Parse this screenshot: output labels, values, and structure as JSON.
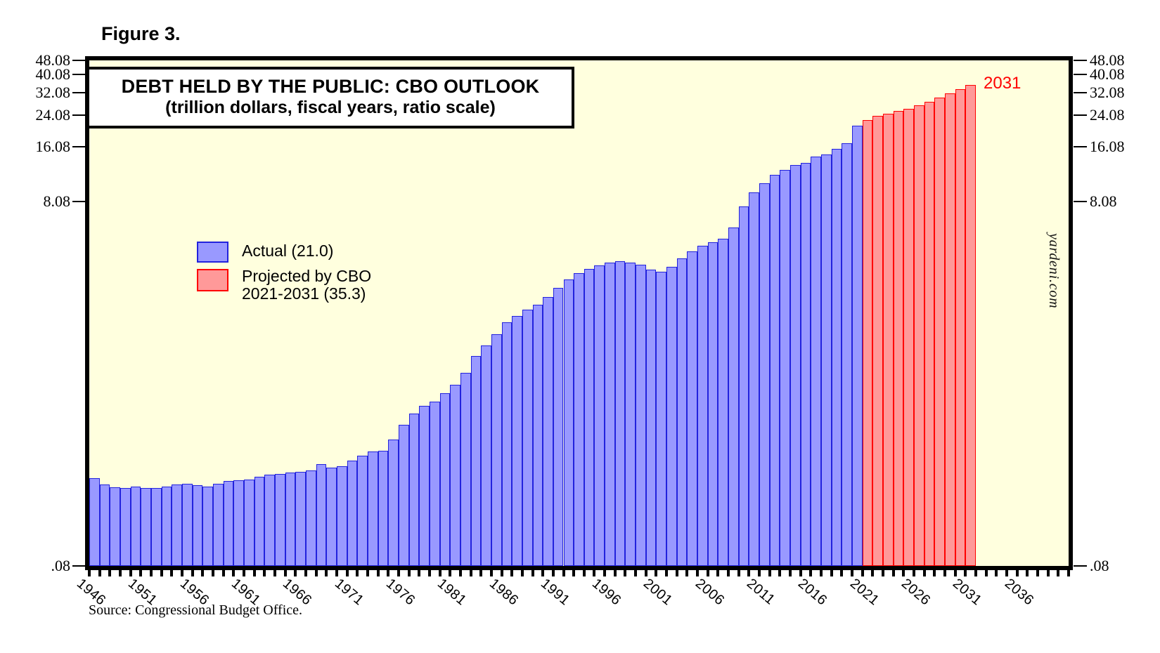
{
  "figure_label": "Figure 3.",
  "title": {
    "line1": "DEBT HELD BY THE PUBLIC: CBO OUTLOOK",
    "line2": "(trillion dollars, fiscal years, ratio scale)"
  },
  "legend": {
    "actual_label": "Actual (21.0)",
    "projected_label_line1": "Projected by CBO",
    "projected_label_line2": "2021-2031 (35.3)"
  },
  "annotation_last_bar": "2031",
  "watermark": "yardeni.com",
  "source_note": "Source: Congressional Budget Office.",
  "colors": {
    "plot_background": "#FFFFDE",
    "actual_fill": "#9999FF",
    "actual_stroke": "#2222DD",
    "projected_fill": "#FF9999",
    "projected_stroke": "#FF0000",
    "annotation_red": "#FF0000",
    "axis_black": "#000000"
  },
  "chart_data": {
    "type": "bar",
    "title": "DEBT HELD BY THE PUBLIC: CBO OUTLOOK",
    "subtitle": "(trillion dollars, fiscal years, ratio scale)",
    "units": "trillion dollars, fiscal years",
    "y_scale": "log",
    "ylim": [
      0.08,
      48.08
    ],
    "y_tick_labels": [
      "48.08",
      "40.08",
      "32.08",
      "24.08",
      "16.08",
      "8.08",
      ".08"
    ],
    "x_start_year": 1946,
    "x_axis_end_year": 2041,
    "x_labeled_years": [
      1946,
      1951,
      1956,
      1961,
      1966,
      1971,
      1976,
      1981,
      1986,
      1991,
      1996,
      2001,
      2006,
      2011,
      2016,
      2021,
      2026,
      2031,
      2036
    ],
    "legend_position": "upper-left-inside",
    "grid": false,
    "series": [
      {
        "name": "Actual (21.0)",
        "start_year": 1946,
        "end_year": 2020,
        "fill": "#9999FF",
        "stroke": "#2222DD",
        "values": [
          0.242,
          0.224,
          0.216,
          0.214,
          0.219,
          0.214,
          0.214,
          0.218,
          0.224,
          0.226,
          0.222,
          0.219,
          0.226,
          0.235,
          0.237,
          0.238,
          0.248,
          0.254,
          0.257,
          0.261,
          0.264,
          0.267,
          0.29,
          0.278,
          0.283,
          0.303,
          0.322,
          0.341,
          0.344,
          0.395,
          0.477,
          0.549,
          0.607,
          0.64,
          0.712,
          0.789,
          0.925,
          1.137,
          1.307,
          1.507,
          1.741,
          1.89,
          2.052,
          2.191,
          2.412,
          2.689,
          3.0,
          3.248,
          3.433,
          3.604,
          3.734,
          3.772,
          3.721,
          3.632,
          3.41,
          3.32,
          3.54,
          3.913,
          4.296,
          4.592,
          4.829,
          5.035,
          5.803,
          7.545,
          9.019,
          10.128,
          11.281,
          11.983,
          12.78,
          13.117,
          14.168,
          14.665,
          15.75,
          16.801,
          21.017
        ]
      },
      {
        "name": "Projected by CBO 2021-2031 (35.3)",
        "start_year": 2021,
        "end_year": 2031,
        "fill": "#FF9999",
        "stroke": "#FF0000",
        "values": [
          22.5,
          23.8,
          24.5,
          25.3,
          26.1,
          27.2,
          28.5,
          30.0,
          31.6,
          33.4,
          35.3
        ]
      }
    ]
  }
}
